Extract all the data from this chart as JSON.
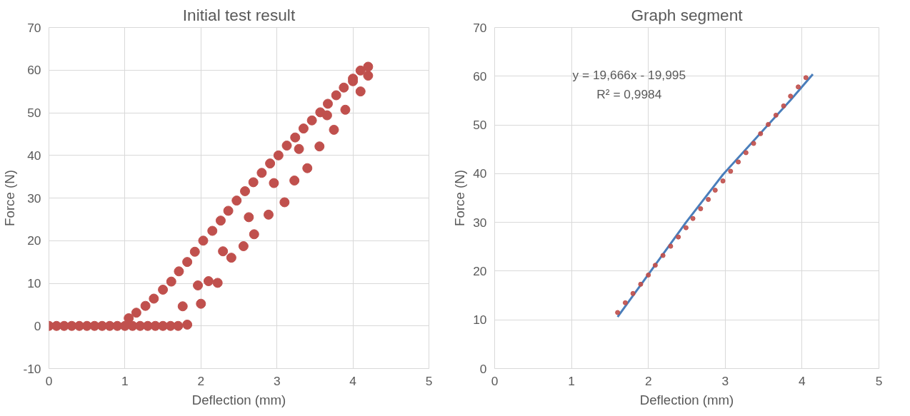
{
  "chart_data": [
    {
      "type": "scatter",
      "title": "Initial test result",
      "xlabel": "Deflection (mm)",
      "ylabel": "Force (N)",
      "xlim": [
        0,
        5
      ],
      "ylim": [
        -10,
        70
      ],
      "xticks": [
        0,
        1,
        2,
        3,
        4,
        5
      ],
      "yticks": [
        -10,
        0,
        10,
        20,
        30,
        40,
        50,
        60,
        70
      ],
      "grid": true,
      "marker": "circle",
      "series": [
        {
          "color": "#c0504d",
          "x": [
            0,
            0.1,
            0.2,
            0.3,
            0.4,
            0.5,
            0.6,
            0.7,
            0.8,
            0.9,
            1.0,
            1.1,
            1.2,
            1.3,
            1.4,
            1.5,
            1.6,
            1.7,
            1.05,
            1.15,
            1.27,
            1.38,
            1.5,
            1.61,
            1.71,
            1.82,
            1.92,
            2.03,
            2.15,
            2.26,
            2.36,
            2.47,
            2.58,
            2.69,
            2.8,
            2.91,
            3.02,
            3.13,
            3.24,
            3.35,
            3.46,
            3.57,
            3.67,
            3.78,
            3.88,
            4.0,
            4.1,
            4.2,
            1.76,
            1.82,
            1.96,
            2.0,
            2.1,
            2.22,
            2.29,
            2.4,
            2.56,
            2.63,
            2.7,
            2.89,
            2.96,
            3.1,
            3.23,
            3.29,
            3.4,
            3.56,
            3.66,
            3.75,
            3.9,
            4.0,
            4.1,
            4.2
          ],
          "values": [
            0,
            0,
            0,
            0,
            0,
            0,
            0,
            0,
            0,
            0,
            0,
            0,
            0,
            0,
            0,
            0,
            0,
            0,
            1.8,
            3.1,
            4.7,
            6.4,
            8.5,
            10.4,
            12.8,
            15.0,
            17.4,
            20.0,
            22.3,
            24.7,
            27.0,
            29.4,
            31.6,
            33.7,
            35.9,
            38.1,
            40.0,
            42.3,
            44.2,
            46.3,
            48.2,
            50.1,
            52.1,
            54.1,
            55.9,
            58.0,
            59.9,
            60.8,
            4.6,
            0.3,
            9.5,
            5.2,
            10.5,
            10.1,
            17.5,
            16.0,
            18.7,
            25.5,
            21.5,
            26.1,
            33.5,
            29.0,
            34.1,
            41.5,
            37.0,
            42.1,
            49.4,
            46.0,
            50.7,
            57.4,
            55.0,
            58.7
          ]
        }
      ]
    },
    {
      "type": "scatter",
      "title": "Graph segment",
      "xlabel": "Deflection (mm)",
      "ylabel": "Force (N)",
      "xlim": [
        0,
        5
      ],
      "ylim": [
        0,
        70
      ],
      "xticks": [
        0,
        1,
        2,
        3,
        4,
        5
      ],
      "yticks": [
        0,
        10,
        20,
        30,
        40,
        50,
        60,
        70
      ],
      "grid": true,
      "annotations": [
        "y = 19,666x - 19,995",
        "R² = 0,9984"
      ],
      "series": [
        {
          "color": "#c0504d",
          "marker": "circle",
          "x": [
            1.6,
            1.7,
            1.8,
            1.9,
            2.0,
            2.09,
            2.19,
            2.29,
            2.39,
            2.49,
            2.58,
            2.68,
            2.78,
            2.87,
            2.97,
            3.07,
            3.17,
            3.27,
            3.37,
            3.46,
            3.56,
            3.66,
            3.76,
            3.85,
            3.95,
            4.05
          ],
          "values": [
            11.5,
            13.5,
            15.4,
            17.3,
            19.2,
            21.2,
            23.2,
            25.1,
            27.0,
            28.9,
            30.8,
            32.8,
            34.7,
            36.6,
            38.5,
            40.5,
            42.4,
            44.3,
            46.2,
            48.2,
            50.1,
            52.0,
            53.9,
            55.9,
            57.8,
            59.7
          ]
        },
        {
          "type": "line",
          "color": "#4a7ebb",
          "x": [
            1.6,
            2.49,
            2.97,
            3.85,
            4.14
          ],
          "values": [
            10.6,
            30.0,
            39.8,
            55.1,
            60.4
          ]
        }
      ]
    }
  ]
}
